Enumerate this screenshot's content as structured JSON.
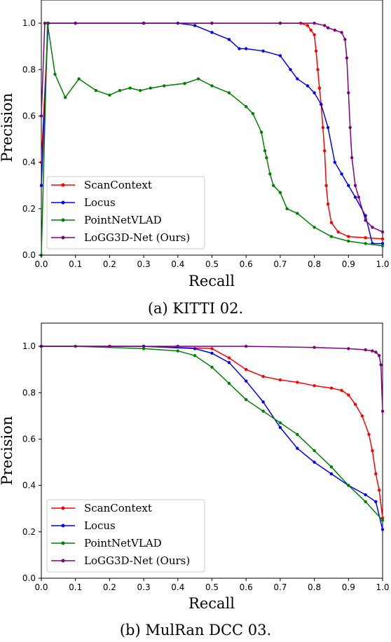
{
  "chart_data": [
    {
      "type": "line",
      "caption": "(a) KITTI 02.",
      "xlabel": "Recall",
      "ylabel": "Precision",
      "xlim": [
        0,
        1
      ],
      "ylim": [
        0,
        1.1
      ],
      "xticks": [
        "0.0",
        "0.1",
        "0.2",
        "0.3",
        "0.4",
        "0.5",
        "0.6",
        "0.7",
        "0.8",
        "0.9",
        "1.0"
      ],
      "yticks": [
        "0.0",
        "0.2",
        "0.4",
        "0.6",
        "0.8",
        "1.0"
      ],
      "legend_position": "lower-left",
      "series": [
        {
          "name": "ScanContext",
          "color": "#ff0000",
          "x": [
            0,
            0.02,
            0.1,
            0.3,
            0.5,
            0.7,
            0.76,
            0.78,
            0.79,
            0.8,
            0.805,
            0.81,
            0.815,
            0.82,
            0.825,
            0.83,
            0.835,
            0.84,
            0.85,
            0.87,
            0.9,
            0.95,
            1.0
          ],
          "y": [
            0.4,
            1.0,
            1.0,
            1.0,
            1.0,
            1.0,
            1.0,
            0.99,
            0.97,
            0.95,
            0.88,
            0.8,
            0.72,
            0.65,
            0.55,
            0.45,
            0.3,
            0.22,
            0.14,
            0.1,
            0.08,
            0.075,
            0.07
          ]
        },
        {
          "name": "Locus",
          "color": "#0000ff",
          "x": [
            0,
            0.02,
            0.1,
            0.3,
            0.4,
            0.45,
            0.5,
            0.55,
            0.58,
            0.6,
            0.65,
            0.7,
            0.73,
            0.75,
            0.78,
            0.8,
            0.82,
            0.84,
            0.86,
            0.88,
            0.9,
            0.92,
            0.95,
            0.97,
            1.0
          ],
          "y": [
            0.3,
            1.0,
            1.0,
            1.0,
            1.0,
            0.99,
            0.96,
            0.93,
            0.89,
            0.89,
            0.88,
            0.86,
            0.8,
            0.76,
            0.73,
            0.7,
            0.65,
            0.55,
            0.4,
            0.35,
            0.3,
            0.25,
            0.17,
            0.05,
            0.05
          ]
        },
        {
          "name": "PointNetVLAD",
          "color": "#008000",
          "x": [
            0,
            0.018,
            0.04,
            0.07,
            0.11,
            0.16,
            0.2,
            0.23,
            0.26,
            0.29,
            0.32,
            0.36,
            0.42,
            0.46,
            0.5,
            0.55,
            0.6,
            0.62,
            0.645,
            0.655,
            0.66,
            0.67,
            0.68,
            0.7,
            0.72,
            0.75,
            0.8,
            0.85,
            0.9,
            0.95,
            1.0
          ],
          "y": [
            0.0,
            1.0,
            0.78,
            0.68,
            0.76,
            0.71,
            0.69,
            0.71,
            0.72,
            0.71,
            0.72,
            0.73,
            0.74,
            0.76,
            0.73,
            0.7,
            0.64,
            0.61,
            0.53,
            0.45,
            0.42,
            0.35,
            0.3,
            0.27,
            0.2,
            0.18,
            0.12,
            0.08,
            0.06,
            0.05,
            0.04
          ]
        },
        {
          "name": "LoGG3D-Net (Ours)",
          "color": "#800080",
          "x": [
            0,
            0.01,
            0.1,
            0.3,
            0.5,
            0.7,
            0.8,
            0.83,
            0.84,
            0.86,
            0.88,
            0.89,
            0.895,
            0.9,
            0.905,
            0.91,
            0.92,
            0.93,
            0.95,
            0.97,
            1.0
          ],
          "y": [
            0.6,
            1.0,
            1.0,
            1.0,
            1.0,
            1.0,
            1.0,
            0.99,
            0.98,
            0.97,
            0.96,
            0.93,
            0.85,
            0.7,
            0.55,
            0.42,
            0.3,
            0.25,
            0.15,
            0.12,
            0.1
          ]
        }
      ]
    },
    {
      "type": "line",
      "caption": "(b) MulRan DCC 03.",
      "xlabel": "Recall",
      "ylabel": "Precision",
      "xlim": [
        0,
        1
      ],
      "ylim": [
        0,
        1.1
      ],
      "xticks": [
        "0.0",
        "0.1",
        "0.2",
        "0.3",
        "0.4",
        "0.5",
        "0.6",
        "0.7",
        "0.8",
        "0.9",
        "1.0"
      ],
      "yticks": [
        "0.0",
        "0.2",
        "0.4",
        "0.6",
        "0.8",
        "1.0"
      ],
      "legend_position": "lower-left",
      "series": [
        {
          "name": "ScanContext",
          "color": "#ff0000",
          "x": [
            0,
            0.1,
            0.3,
            0.5,
            0.55,
            0.6,
            0.65,
            0.7,
            0.75,
            0.8,
            0.85,
            0.88,
            0.9,
            0.92,
            0.94,
            0.96,
            0.97,
            0.98,
            0.99,
            1.0
          ],
          "y": [
            1.0,
            1.0,
            1.0,
            0.99,
            0.95,
            0.9,
            0.87,
            0.855,
            0.845,
            0.83,
            0.82,
            0.81,
            0.79,
            0.75,
            0.7,
            0.62,
            0.55,
            0.45,
            0.38,
            0.26
          ]
        },
        {
          "name": "Locus",
          "color": "#0000ff",
          "x": [
            0,
            0.1,
            0.3,
            0.45,
            0.5,
            0.55,
            0.6,
            0.65,
            0.7,
            0.75,
            0.8,
            0.85,
            0.9,
            0.95,
            0.98,
            1.0
          ],
          "y": [
            1.0,
            1.0,
            1.0,
            0.99,
            0.97,
            0.93,
            0.85,
            0.76,
            0.65,
            0.56,
            0.5,
            0.45,
            0.4,
            0.36,
            0.33,
            0.21
          ]
        },
        {
          "name": "PointNetVLAD",
          "color": "#008000",
          "x": [
            0,
            0.1,
            0.3,
            0.4,
            0.45,
            0.5,
            0.55,
            0.6,
            0.65,
            0.7,
            0.75,
            0.8,
            0.85,
            0.9,
            0.95,
            1.0
          ],
          "y": [
            1.0,
            1.0,
            0.99,
            0.98,
            0.96,
            0.91,
            0.84,
            0.77,
            0.72,
            0.67,
            0.62,
            0.55,
            0.48,
            0.4,
            0.33,
            0.25
          ]
        },
        {
          "name": "LoGG3D-Net (Ours)",
          "color": "#800080",
          "x": [
            0,
            0.2,
            0.4,
            0.6,
            0.8,
            0.9,
            0.95,
            0.97,
            0.98,
            0.99,
            0.995,
            1.0
          ],
          "y": [
            1.0,
            1.0,
            1.0,
            1.0,
            0.995,
            0.99,
            0.985,
            0.98,
            0.975,
            0.96,
            0.92,
            0.72
          ]
        }
      ]
    }
  ]
}
